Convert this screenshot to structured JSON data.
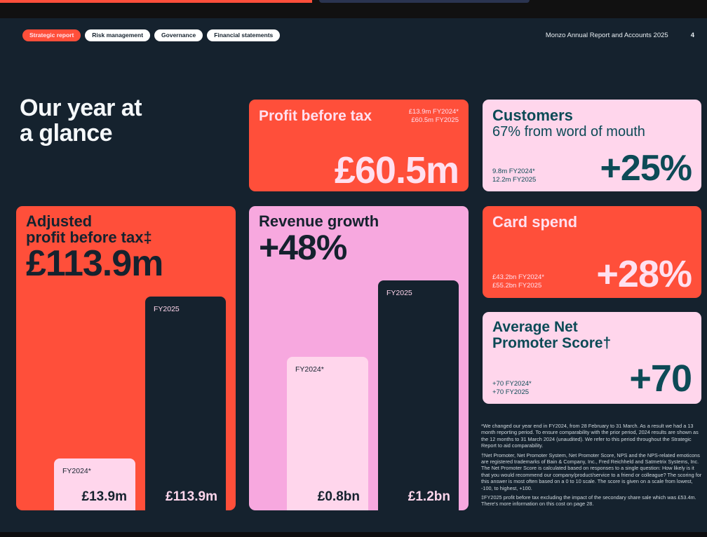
{
  "nav": {
    "tabs": [
      "Strategic report",
      "Risk management",
      "Governance",
      "Financial statements"
    ],
    "doc_title": "Monzo Annual Report and Accounts 2025",
    "page_number": "4"
  },
  "headline": {
    "line1": "Our year at",
    "line2": "a glance"
  },
  "profit": {
    "label": "Profit before tax",
    "note1": "£13.9m FY2024*",
    "note2": "£60.5m FY2025",
    "value": "£60.5m"
  },
  "customers": {
    "label": "Customers",
    "sub": "67% from word of mouth",
    "note1": "9.8m FY2024*",
    "note2": "12.2m FY2025",
    "value": "+25%"
  },
  "adjusted": {
    "label1": "Adjusted",
    "label2": "profit before tax‡",
    "value": "£113.9m",
    "bars": [
      {
        "label": "FY2024*",
        "value": "£13.9m",
        "amount_m": 13.9
      },
      {
        "label": "FY2025",
        "value": "£113.9m",
        "amount_m": 113.9
      }
    ]
  },
  "revenue": {
    "label": "Revenue growth",
    "value": "+48%",
    "bars": [
      {
        "label": "FY2024*",
        "value": "£0.8bn",
        "amount_bn": 0.8
      },
      {
        "label": "FY2025",
        "value": "£1.2bn",
        "amount_bn": 1.2
      }
    ]
  },
  "cardspend": {
    "label": "Card spend",
    "note1": "£43.2bn FY2024*",
    "note2": "£55.2bn FY2025",
    "value": "+28%"
  },
  "nps": {
    "label1": "Average Net",
    "label2": "Promoter Score†",
    "note1": "+70 FY2024*",
    "note2": "+70 FY2025",
    "value": "+70"
  },
  "footnotes": [
    "*We changed our year end in FY2024, from 28 February to 31 March. As a result we had a 13 month reporting period. To ensure comparability with the prior period, 2024 results are shown as the 12 months to 31 March 2024 (unaudited). We refer to this period throughout the Strategic Report to aid comparability.",
    "†Net Promoter, Net Promoter System, Net Promoter Score, NPS and the NPS-related emoticons are registered trademarks of Bain & Company, Inc., Fred Reichheld and Satmetrix Systems, Inc. The Net Promoter Score is calculated based on responses to a single question: How likely is it that you would recommend our company/product/service to a friend or colleague? The scoring for this answer is most often based on a 0 to 10 scale. The score is given on a scale from lowest, -100, to highest, +100.",
    "‡FY2025 profit before tax excluding the impact of the secondary share sale which was £53.4m. There's more information on this cost on page 28."
  ]
}
